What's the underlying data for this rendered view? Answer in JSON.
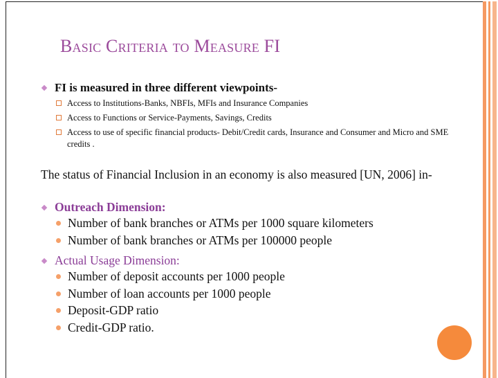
{
  "title": "Basic Criteria to Measure FI",
  "intro": {
    "heading": "FI is measured in three different viewpoints-",
    "items": [
      "Access to Institutions-Banks, NBFIs, MFIs and Insurance Companies",
      "Access to Functions or Service-Payments, Savings, Credits",
      "Access to use of specific financial products- Debit/Credit cards, Insurance and Consumer and Micro and SME credits ."
    ]
  },
  "paragraph": "The status of Financial Inclusion in an economy is also measured [UN, 2006] in-",
  "dimensions": [
    {
      "heading": "Outreach Dimension:",
      "bold": true,
      "items": [
        "Number of bank branches or ATMs per 1000 square kilometers",
        "Number of bank branches or ATMs per 100000 people"
      ]
    },
    {
      "heading": "Actual Usage Dimension:",
      "bold": false,
      "items": [
        "Number of deposit accounts per 1000 people",
        "Number of loan accounts per 1000 people",
        "Deposit-GDP ratio",
        "Credit-GDP ratio."
      ]
    }
  ]
}
